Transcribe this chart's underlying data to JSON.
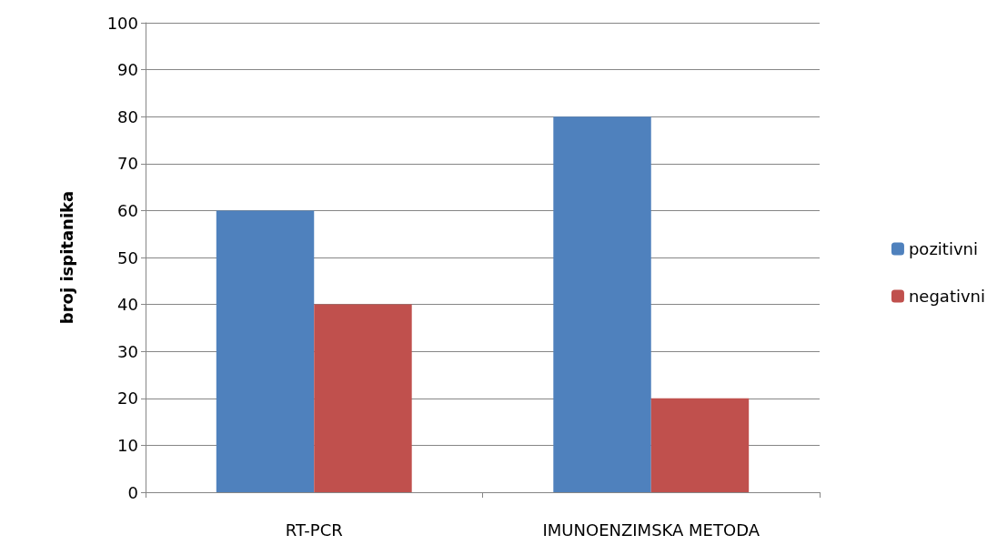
{
  "chart_data": {
    "type": "bar",
    "ylabel": "broj ispitanika",
    "categories": [
      "RT-PCR",
      "IMUNOENZIMSKA METODA"
    ],
    "series": [
      {
        "name": "pozitivni",
        "color": "#4f81bd",
        "values": [
          60,
          80
        ]
      },
      {
        "name": "negativni",
        "color": "#c0504d",
        "values": [
          40,
          20
        ]
      }
    ],
    "ylim": [
      0,
      100
    ],
    "yticks": [
      0,
      10,
      20,
      30,
      40,
      50,
      60,
      70,
      80,
      90,
      100
    ],
    "grid": "y",
    "legend": "right"
  }
}
